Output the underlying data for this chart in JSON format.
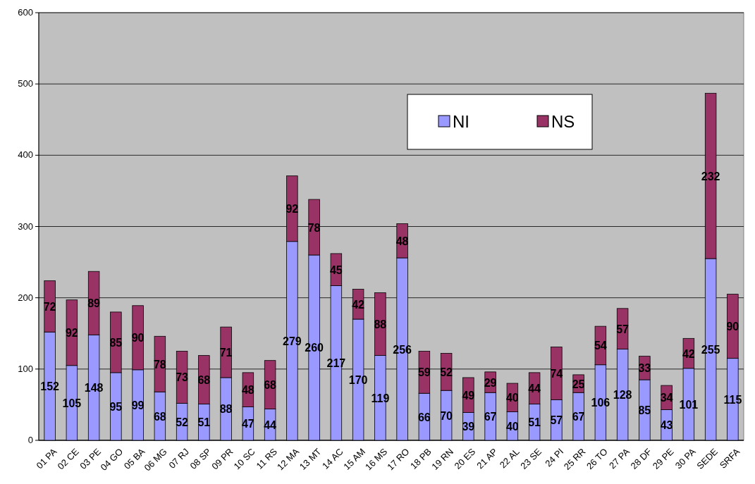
{
  "chart_data": {
    "type": "bar",
    "stacked": true,
    "data_labels": true,
    "grid": "y",
    "legend": "top right",
    "categories": [
      "01 PA",
      "02 CE",
      "03 PE",
      "04 GO",
      "05 BA",
      "06 MG",
      "07 RJ",
      "08 SP",
      "09 PR",
      "10 SC",
      "11 RS",
      "12 MA",
      "13 MT",
      "14 AC",
      "15 AM",
      "16 MS",
      "17 RO",
      "18 PB",
      "19 RN",
      "20 ES",
      "21 AP",
      "22 AL",
      "23 SE",
      "24 PI",
      "25 RR",
      "26 TO",
      "27 PA",
      "28 DF",
      "29 PE",
      "30 PA",
      "SEDE",
      "SRFA"
    ],
    "series": [
      {
        "name": "NI",
        "color": "#9999ff",
        "values": [
          152,
          105,
          148,
          95,
          99,
          68,
          52,
          51,
          88,
          47,
          44,
          279,
          260,
          217,
          170,
          119,
          256,
          66,
          70,
          39,
          67,
          40,
          51,
          57,
          67,
          106,
          128,
          85,
          43,
          101,
          255,
          115
        ]
      },
      {
        "name": "NS",
        "color": "#993366",
        "values": [
          72,
          92,
          89,
          85,
          90,
          78,
          73,
          68,
          71,
          48,
          68,
          92,
          78,
          45,
          42,
          88,
          48,
          59,
          52,
          49,
          29,
          40,
          44,
          74,
          25,
          54,
          57,
          33,
          34,
          42,
          232,
          90
        ]
      }
    ],
    "ylim": [
      0,
      600
    ],
    "yticks": [
      0,
      100,
      200,
      300,
      400,
      500,
      600
    ]
  }
}
